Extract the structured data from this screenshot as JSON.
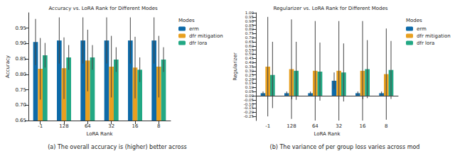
{
  "chart_data": [
    {
      "type": "bar",
      "title": "Accuracy vs. LoRA Rank for Different Modes",
      "x_label": "LoRA Rank",
      "y_label": "Accuracy",
      "caption": "(a) The overall accuracy is (higher) better across",
      "legend_title": "Modes",
      "legend": "right",
      "grid": false,
      "categories": [
        "-1",
        "128",
        "64",
        "32",
        "16",
        "8"
      ],
      "ylim": [
        0.65,
        1.0
      ],
      "yticks": [
        {
          "value": 0.65,
          "label": "0.65"
        },
        {
          "value": 0.7,
          "label": "0.70"
        },
        {
          "value": 0.75,
          "label": "0.75"
        },
        {
          "value": 0.8,
          "label": "0.80"
        },
        {
          "value": 0.85,
          "label": "0.85"
        },
        {
          "value": 0.9,
          "label": "0.90"
        },
        {
          "value": 0.95,
          "label": "0.95"
        }
      ],
      "series": [
        {
          "name": "erm",
          "color": "#0d6aa8",
          "values": [
            0.905,
            0.91,
            0.91,
            0.91,
            0.91,
            0.91
          ],
          "errors": [
            0.075,
            0.075,
            0.075,
            0.075,
            0.075,
            0.075
          ]
        },
        {
          "name": "dfr mitigation",
          "color": "#e8a020",
          "values": [
            0.818,
            0.82,
            0.845,
            0.825,
            0.822,
            0.825
          ],
          "errors": [
            0.1,
            0.1,
            0.1,
            0.1,
            0.1,
            0.1
          ]
        },
        {
          "name": "dfr lora",
          "color": "#22a884",
          "values": [
            0.862,
            0.855,
            0.855,
            0.848,
            0.815,
            0.848
          ],
          "errors": [
            0.04,
            0.04,
            0.04,
            0.04,
            0.04,
            0.04
          ]
        }
      ]
    },
    {
      "type": "bar",
      "title": "Regularizer vs. LoRA Rank for Different Modes",
      "x_label": "LoRA Rank",
      "y_label": "Regularizer",
      "caption": "(b) The variance of per group loss varies across mod",
      "legend_title": "Modes",
      "legend": "right",
      "grid": false,
      "categories": [
        "-1",
        "128",
        "64",
        "32",
        "16",
        "8"
      ],
      "ylim": [
        -0.3,
        1.0
      ],
      "yticks": [
        {
          "value": -0.25,
          "label": "-0.25"
        },
        {
          "value": -0.2,
          "label": "-0.20"
        },
        {
          "value": -0.15,
          "label": "-0.15"
        },
        {
          "value": -0.1,
          "label": "-0.10"
        },
        {
          "value": -0.05,
          "label": "-0.05"
        },
        {
          "value": 0,
          "label": "0.00"
        },
        {
          "value": 0.05,
          "label": "0.05"
        },
        {
          "value": 0.1,
          "label": "0.10"
        },
        {
          "value": 0.15,
          "label": "0.15"
        },
        {
          "value": 0.2,
          "label": "0.20"
        },
        {
          "value": 0.25,
          "label": "0.25"
        },
        {
          "value": 0.3,
          "label": "0.30"
        },
        {
          "value": 0.35,
          "label": "0.35"
        },
        {
          "value": 0.4,
          "label": "0.40"
        },
        {
          "value": 0.45,
          "label": "0.45"
        },
        {
          "value": 0.5,
          "label": "0.50"
        },
        {
          "value": 0.55,
          "label": "0.55"
        },
        {
          "value": 0.6,
          "label": "0.60"
        },
        {
          "value": 0.65,
          "label": "0.65"
        },
        {
          "value": 0.7,
          "label": "0.70"
        },
        {
          "value": 0.75,
          "label": "0.75"
        },
        {
          "value": 0.8,
          "label": "0.80"
        },
        {
          "value": 0.85,
          "label": "0.85"
        },
        {
          "value": 0.9,
          "label": "0.90"
        },
        {
          "value": 0.95,
          "label": "0.95"
        },
        {
          "value": 1.0,
          "label": "1.00"
        }
      ],
      "series": [
        {
          "name": "erm",
          "color": "#0d6aa8",
          "values": [
            0.03,
            0.03,
            0.03,
            0.18,
            0.03,
            0.03
          ],
          "errors": [
            0.02,
            0.02,
            0.02,
            0.1,
            0.02,
            0.02
          ]
        },
        {
          "name": "dfr mitigation",
          "color": "#e8a020",
          "values": [
            0.35,
            0.32,
            0.3,
            0.3,
            0.3,
            0.26
          ],
          "errors": [
            0.6,
            0.6,
            0.6,
            0.6,
            0.6,
            0.55
          ]
        },
        {
          "name": "dfr lora",
          "color": "#22a884",
          "values": [
            0.25,
            0.3,
            0.29,
            0.28,
            0.32,
            0.31
          ],
          "errors": [
            0.4,
            0.35,
            0.35,
            0.35,
            0.35,
            0.35
          ]
        }
      ]
    }
  ]
}
